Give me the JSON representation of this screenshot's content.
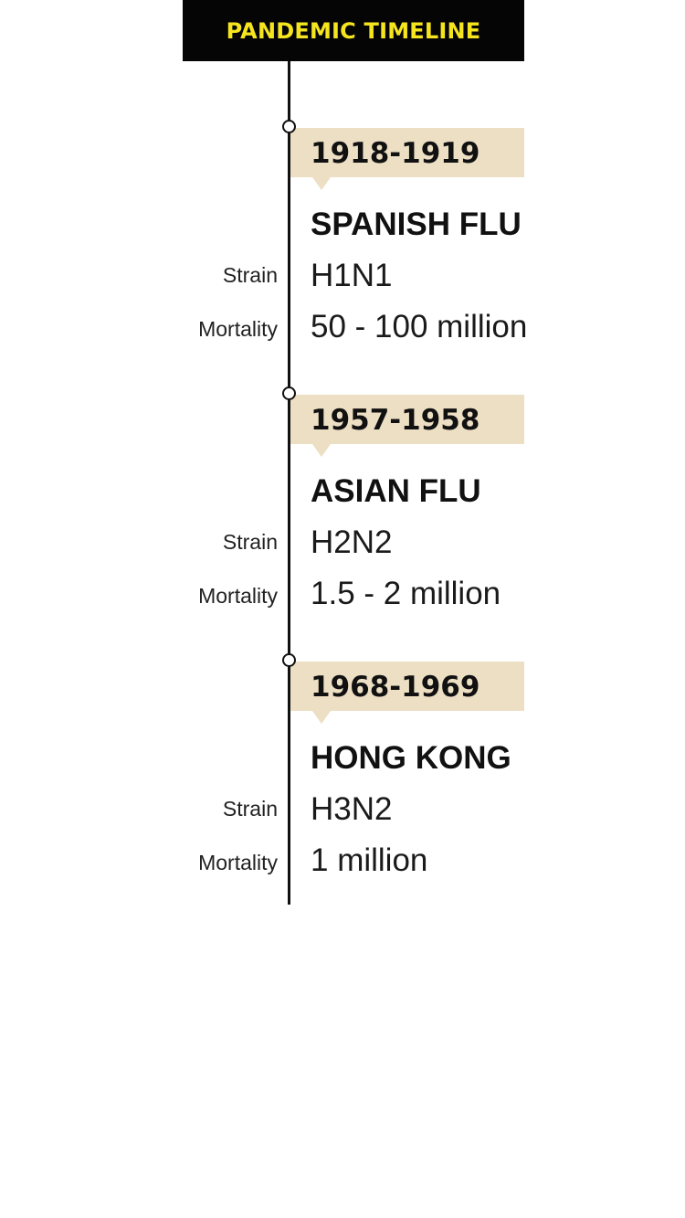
{
  "header": {
    "title": "PANDEMIC TIMELINE"
  },
  "labels": {
    "strain": "Strain",
    "mortality": "Mortality"
  },
  "events": [
    {
      "dates": "1918-1919",
      "name": "SPANISH FLU",
      "strain": "H1N1",
      "mortality": "50 - 100 million"
    },
    {
      "dates": "1957-1958",
      "name": "ASIAN FLU",
      "strain": "H2N2",
      "mortality": "1.5 - 2 million"
    },
    {
      "dates": "1968-1969",
      "name": "HONG KONG",
      "strain": "H3N2",
      "mortality": "1 million"
    }
  ],
  "colors": {
    "header_bg": "#050505",
    "header_text": "#f5e51e",
    "date_banner": "#eddfc4",
    "line": "#111111"
  }
}
